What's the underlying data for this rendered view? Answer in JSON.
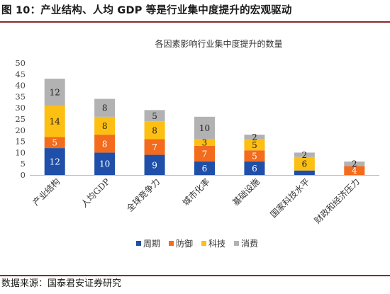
{
  "figure": {
    "title": "图 10：产业结构、人均 GDP 等是行业集中度提升的宏观驱动",
    "source": "数据来源：国泰君安证券研究"
  },
  "chart_data": {
    "type": "bar",
    "stacked": true,
    "title": "各因素影响行业集中度提升的数量",
    "xlabel": "",
    "ylabel": "",
    "ylim": [
      0,
      50
    ],
    "yticks": [
      0,
      5,
      10,
      15,
      20,
      25,
      30,
      35,
      40,
      45,
      50
    ],
    "grid": false,
    "legend_position": "bottom",
    "categories": [
      "产业结构",
      "人均GDP",
      "全球竞争力",
      "城市化率",
      "基础设施",
      "国家科技水平",
      "财政和经济压力"
    ],
    "series": [
      {
        "name": "周期",
        "color": "#1f4fa8",
        "values": [
          12,
          10,
          9,
          6,
          6,
          2,
          0
        ]
      },
      {
        "name": "防御",
        "color": "#f36b1c",
        "values": [
          5,
          8,
          7,
          7,
          5,
          0,
          4
        ]
      },
      {
        "name": "科技",
        "color": "#fdbf12",
        "values": [
          14,
          8,
          8,
          3,
          5,
          6,
          0
        ]
      },
      {
        "name": "消费",
        "color": "#b2b2b2",
        "values": [
          12,
          8,
          5,
          10,
          2,
          2,
          2
        ]
      }
    ],
    "data_labels": [
      [
        "12",
        "10",
        "9",
        "6",
        "6",
        "",
        ""
      ],
      [
        "5",
        "8",
        "7",
        "7",
        "5",
        "",
        "4"
      ],
      [
        "14",
        "8",
        "8",
        "3",
        "5",
        "6",
        ""
      ],
      [
        "12",
        "8",
        "5",
        "10",
        "2",
        "2",
        "2"
      ]
    ]
  }
}
